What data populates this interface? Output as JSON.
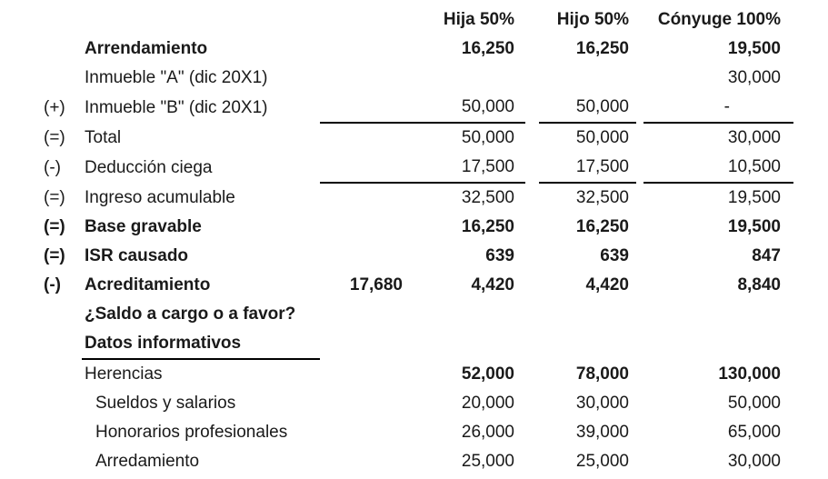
{
  "table": {
    "header": {
      "hija": "Hija 50%",
      "hijo": "Hijo 50%",
      "conyuge": "Cónyuge 100%"
    },
    "rows": [
      {
        "op": "",
        "label": "Arrendamiento",
        "extra": "",
        "hija": "16,250",
        "hijo": "16,250",
        "conyuge": "19,500",
        "bold": true
      },
      {
        "op": "",
        "label": "Inmueble \"A\" (dic 20X1)",
        "extra": "",
        "hija": "",
        "hijo": "",
        "conyuge": "30,000"
      },
      {
        "op": "(+)",
        "label": "Inmueble \"B\" (dic 20X1)",
        "extra": "",
        "hija": "50,000",
        "hijo": "50,000",
        "conyuge": "-",
        "underline": true
      },
      {
        "op": "(=)",
        "label": "Total",
        "extra": "",
        "hija": "50,000",
        "hijo": "50,000",
        "conyuge": "30,000"
      },
      {
        "op": "(-)",
        "label": "Deducción ciega",
        "extra": "",
        "hija": "17,500",
        "hijo": "17,500",
        "conyuge": "10,500",
        "underline": true
      },
      {
        "op": "(=)",
        "label": "Ingreso acumulable",
        "extra": "",
        "hija": "32,500",
        "hijo": "32,500",
        "conyuge": "19,500"
      },
      {
        "op": "(=)",
        "label": "Base gravable",
        "extra": "",
        "hija": "16,250",
        "hijo": "16,250",
        "conyuge": "19,500",
        "bold": true
      },
      {
        "op": "(=)",
        "label": "ISR causado",
        "extra": "",
        "hija": "639",
        "hijo": "639",
        "conyuge": "847",
        "bold": true
      },
      {
        "op": "(-)",
        "label": "Acreditamiento",
        "extra": "17,680",
        "hija": "4,420",
        "hijo": "4,420",
        "conyuge": "8,840",
        "bold": true
      },
      {
        "op": "",
        "label": "¿Saldo a cargo o a favor?",
        "extra": "",
        "hija": "",
        "hijo": "",
        "conyuge": "",
        "bold": true
      },
      {
        "op": "",
        "label": "Datos informativos",
        "extra": "",
        "hija": "",
        "hijo": "",
        "conyuge": "",
        "bold": true,
        "label_underline": true
      },
      {
        "op": "",
        "label": "Herencias",
        "extra": "",
        "hija": "52,000",
        "hijo": "78,000",
        "conyuge": "130,000",
        "values_bold": true
      },
      {
        "op": "",
        "label": "Sueldos y salarios",
        "extra": "",
        "hija": "20,000",
        "hijo": "30,000",
        "conyuge": "50,000",
        "indent": true
      },
      {
        "op": "",
        "label": "Honorarios profesionales",
        "extra": "",
        "hija": "26,000",
        "hijo": "39,000",
        "conyuge": "65,000",
        "indent": true
      },
      {
        "op": "",
        "label": "Arredamiento",
        "extra": "",
        "hija": "25,000",
        "hijo": "25,000",
        "conyuge": "30,000",
        "indent": true
      }
    ]
  }
}
